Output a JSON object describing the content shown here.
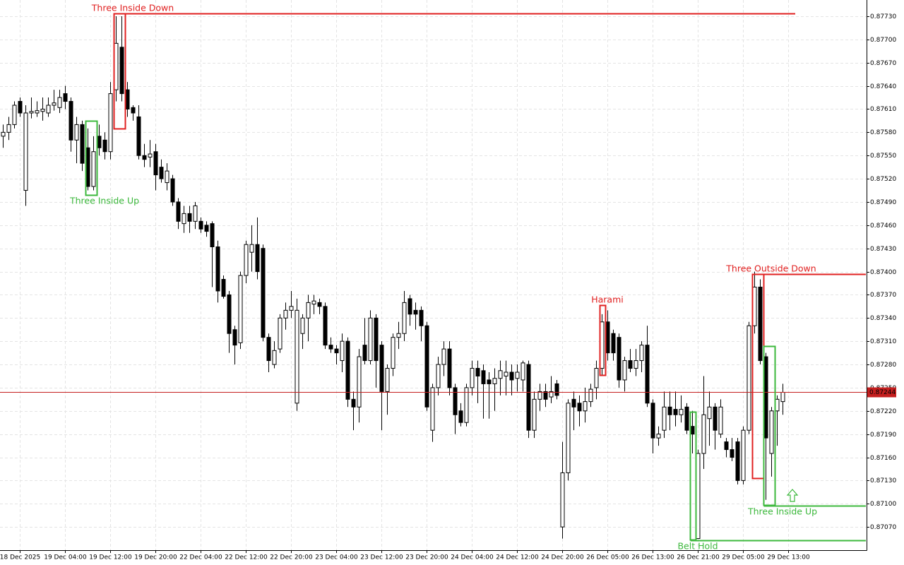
{
  "chart_data": {
    "type": "candlestick",
    "categories": [
      null,
      null,
      null,
      "18 Dec 2025",
      null,
      null,
      null,
      null,
      null,
      null,
      null,
      "19 Dec 04:00",
      null,
      null,
      null,
      null,
      null,
      null,
      null,
      "19 Dec 12:00",
      null,
      null,
      null,
      null,
      null,
      null,
      null,
      "19 Dec 20:00",
      null,
      null,
      null,
      null,
      null,
      null,
      null,
      "22 Dec 04:00",
      null,
      null,
      null,
      null,
      null,
      null,
      null,
      "22 Dec 12:00",
      null,
      null,
      null,
      null,
      null,
      null,
      null,
      "22 Dec 20:00",
      null,
      null,
      null,
      null,
      null,
      null,
      null,
      "23 Dec 04:00",
      null,
      null,
      null,
      null,
      null,
      null,
      null,
      "23 Dec 12:00",
      null,
      null,
      null,
      null,
      null,
      null,
      null,
      "23 Dec 20:00",
      null,
      null,
      null,
      null,
      null,
      null,
      null,
      "24 Dec 04:00",
      null,
      null,
      null,
      null,
      null,
      null,
      null,
      "24 Dec 12:00",
      null,
      null,
      null,
      null,
      null,
      null,
      null,
      "24 Dec 20:00",
      null,
      null,
      null,
      null,
      null,
      null,
      null,
      "26 Dec 05:00",
      null,
      null,
      null,
      null,
      null,
      null,
      null,
      "26 Dec 13:00",
      null,
      null,
      null,
      null,
      null,
      null,
      null,
      "26 Dec 21:00",
      null,
      null,
      null,
      null,
      null,
      null,
      null,
      "29 Dec 05:00",
      null,
      null,
      null,
      null,
      null,
      null,
      null,
      "29 Dec 13:00"
    ],
    "open": [
      0.87575,
      0.8758,
      0.8759,
      0.8762,
      0.87505,
      0.87605,
      0.87605,
      0.87607,
      0.87605,
      0.87615,
      0.87612,
      0.8763,
      0.8762,
      0.8757,
      0.8759,
      0.8756,
      0.8751,
      0.87575,
      0.8757,
      0.87555,
      0.87635,
      0.8769,
      0.87635,
      0.87612,
      0.876,
      0.8755,
      0.87548,
      0.87555,
      0.87535,
      0.87515,
      0.8752,
      0.8749,
      0.87462,
      0.87475,
      0.87465,
      0.87465,
      0.8746,
      0.87462,
      0.87432,
      0.8739,
      0.8737,
      0.87325,
      0.87308,
      0.87395,
      0.87425,
      0.87435,
      0.8743,
      0.87315,
      0.8728,
      0.873,
      0.8734,
      0.8735,
      0.8723,
      0.8732,
      0.8734,
      0.87358,
      0.8736,
      0.87355,
      0.87305,
      0.873,
      0.87285,
      0.8731,
      0.87235,
      0.87225,
      0.87305,
      0.87285,
      0.8734,
      0.87305,
      0.87245,
      0.87275,
      0.87315,
      0.8732,
      0.87365,
      0.8735,
      0.8735,
      0.8733,
      0.87195,
      0.8725,
      0.8728,
      0.873,
      0.8725,
      0.8722,
      0.87205,
      0.8725,
      0.87275,
      0.87272,
      0.8726,
      0.87255,
      0.87262,
      0.87265,
      0.8727,
      0.87262,
      0.8726,
      0.8728,
      0.87195,
      0.87235,
      0.87245,
      0.87238,
      0.87255,
      0.8707,
      0.8714,
      0.87235,
      0.8723,
      0.8722,
      0.87232,
      0.8725,
      0.87275,
      0.87335,
      0.8732,
      0.87315,
      0.8726,
      0.87285,
      0.87275,
      0.87285,
      0.87305,
      0.8723,
      0.87185,
      0.87195,
      0.87225,
      0.87222,
      0.87215,
      0.87225,
      0.872,
      0.87055,
      0.87165,
      0.8721,
      0.87225,
      0.8719,
      0.8718,
      0.8717,
      0.8718,
      0.8713,
      0.87195,
      0.8733,
      0.8738,
      0.8729,
      0.87165,
      0.8722,
      0.87232,
      null
    ],
    "high": [
      0.8759,
      0.876,
      0.8762,
      0.87625,
      0.87615,
      0.87625,
      0.8762,
      0.87625,
      0.87625,
      0.87635,
      0.87635,
      0.8764,
      0.87625,
      0.876,
      0.87595,
      0.87585,
      0.87575,
      0.8759,
      0.8758,
      0.87645,
      0.8773,
      0.8773,
      0.87645,
      0.87615,
      0.87615,
      0.87565,
      0.8757,
      0.87565,
      0.87545,
      0.8754,
      0.87525,
      0.87495,
      0.87485,
      0.87485,
      0.8749,
      0.8747,
      0.87465,
      0.87465,
      0.8744,
      0.87395,
      0.87375,
      0.8733,
      0.874,
      0.8744,
      0.8746,
      0.8747,
      0.87435,
      0.8732,
      0.8731,
      0.87345,
      0.8736,
      0.87375,
      0.87365,
      0.87345,
      0.8737,
      0.8737,
      0.87365,
      0.8736,
      0.87315,
      0.87305,
      0.8732,
      0.87315,
      0.87245,
      0.873,
      0.8734,
      0.8735,
      0.87345,
      0.8731,
      0.8728,
      0.8732,
      0.87335,
      0.87375,
      0.8737,
      0.8736,
      0.87355,
      0.87335,
      0.87255,
      0.8729,
      0.8731,
      0.8731,
      0.87255,
      0.8723,
      0.87255,
      0.87285,
      0.87285,
      0.8728,
      0.8727,
      0.87275,
      0.87285,
      0.87285,
      0.8728,
      0.8728,
      0.87285,
      0.87285,
      0.87245,
      0.87255,
      0.87255,
      0.87265,
      0.8726,
      0.8718,
      0.87235,
      0.87245,
      0.8724,
      0.8725,
      0.87255,
      0.87285,
      0.87345,
      0.8735,
      0.87325,
      0.8732,
      0.8729,
      0.873,
      0.873,
      0.8731,
      0.8733,
      0.87235,
      0.872,
      0.87245,
      0.87245,
      0.87245,
      0.8724,
      0.8723,
      0.8722,
      0.8717,
      0.87265,
      0.87245,
      0.8723,
      0.87235,
      0.87185,
      0.87185,
      0.87185,
      0.872,
      0.87335,
      0.874,
      0.8739,
      0.87295,
      0.87225,
      0.8724,
      0.87255,
      null
    ],
    "low": [
      0.8756,
      0.8757,
      0.87585,
      0.876,
      0.87485,
      0.87598,
      0.876,
      0.87595,
      0.876,
      0.87608,
      0.87605,
      0.8761,
      0.87555,
      0.8754,
      0.8753,
      0.87505,
      0.87505,
      0.8755,
      0.87545,
      0.87545,
      0.8762,
      0.8762,
      0.876,
      0.87595,
      0.87545,
      0.87535,
      0.87535,
      0.87505,
      0.87515,
      0.87505,
      0.87485,
      0.87455,
      0.8745,
      0.8745,
      0.87455,
      0.8745,
      0.87445,
      0.8738,
      0.8736,
      0.87365,
      0.87295,
      0.8728,
      0.873,
      0.87385,
      0.874,
      0.8739,
      0.8731,
      0.8727,
      0.87275,
      0.87295,
      0.87325,
      0.8734,
      0.8722,
      0.873,
      0.8731,
      0.87345,
      0.87345,
      0.873,
      0.87295,
      0.8728,
      0.8727,
      0.87225,
      0.87195,
      0.87205,
      0.8728,
      0.8728,
      0.8725,
      0.87195,
      0.87215,
      0.87265,
      0.873,
      0.8731,
      0.8733,
      0.87325,
      0.8731,
      0.8722,
      0.8718,
      0.8724,
      0.87265,
      0.8724,
      0.8719,
      0.872,
      0.872,
      0.8724,
      0.8723,
      0.8721,
      0.8721,
      0.8722,
      0.8724,
      0.8724,
      0.8724,
      0.87245,
      0.87245,
      0.87185,
      0.87185,
      0.8722,
      0.87225,
      0.8723,
      0.87235,
      0.87055,
      0.8713,
      0.87195,
      0.872,
      0.87205,
      0.87225,
      0.87235,
      0.87265,
      0.87285,
      0.87285,
      0.8725,
      0.87245,
      0.8727,
      0.87265,
      0.8727,
      0.87225,
      0.87165,
      0.87175,
      0.87185,
      0.87195,
      0.872,
      0.87205,
      0.8719,
      0.87165,
      0.87055,
      0.87145,
      0.87175,
      0.8717,
      0.87185,
      0.8716,
      0.87155,
      0.87125,
      0.87125,
      0.8719,
      0.8732,
      0.8728,
      0.87105,
      0.87135,
      0.87175,
      0.87215,
      null
    ],
    "close": [
      0.8758,
      0.8759,
      0.87615,
      0.87605,
      0.87605,
      0.87607,
      0.87608,
      0.8761,
      0.87615,
      0.87618,
      0.87625,
      0.8762,
      0.8757,
      0.8759,
      0.8754,
      0.8751,
      0.87555,
      0.8756,
      0.87555,
      0.8763,
      0.87695,
      0.8763,
      0.8761,
      0.87605,
      0.8755,
      0.87545,
      0.87552,
      0.87525,
      0.8752,
      0.8753,
      0.8749,
      0.87465,
      0.87475,
      0.87465,
      0.87485,
      0.87455,
      0.87452,
      0.87432,
      0.87375,
      0.87368,
      0.8732,
      0.87305,
      0.87395,
      0.87435,
      0.87435,
      0.874,
      0.87315,
      0.87285,
      0.87298,
      0.8734,
      0.8735,
      0.87355,
      0.8735,
      0.8734,
      0.8736,
      0.87362,
      0.87355,
      0.87305,
      0.873,
      0.87295,
      0.8731,
      0.87235,
      0.87225,
      0.8729,
      0.87285,
      0.8734,
      0.87285,
      0.87245,
      0.87275,
      0.87315,
      0.8732,
      0.8736,
      0.87345,
      0.87345,
      0.8733,
      0.87225,
      0.8725,
      0.8728,
      0.873,
      0.8725,
      0.87215,
      0.87205,
      0.8725,
      0.87275,
      0.87265,
      0.87255,
      0.87255,
      0.87262,
      0.87272,
      0.8727,
      0.8726,
      0.8727,
      0.87282,
      0.87195,
      0.87235,
      0.87245,
      0.87235,
      0.87245,
      0.8724,
      0.8714,
      0.8723,
      0.87225,
      0.8722,
      0.87232,
      0.87248,
      0.87275,
      0.87335,
      0.87295,
      0.87295,
      0.8726,
      0.87285,
      0.87275,
      0.87285,
      0.87305,
      0.8723,
      0.87185,
      0.8719,
      0.87225,
      0.87215,
      0.87215,
      0.87222,
      0.87195,
      0.8719,
      0.87165,
      0.87215,
      0.87225,
      0.87195,
      0.87225,
      0.8717,
      0.8716,
      0.8713,
      0.87195,
      0.8733,
      0.8738,
      0.87285,
      0.87185,
      0.8722,
      0.87235,
      0.87244,
      null
    ],
    "up_color": "#ffffff",
    "down_color": "#000000",
    "wick_color": "#000000",
    "ylim": [
      0.8704,
      0.87751
    ],
    "yticks": [
      {
        "value": 0.8707,
        "label": "0.87070"
      },
      {
        "value": 0.871,
        "label": "0.87100"
      },
      {
        "value": 0.8713,
        "label": "0.87130"
      },
      {
        "value": 0.8716,
        "label": "0.87160"
      },
      {
        "value": 0.8719,
        "label": "0.87190"
      },
      {
        "value": 0.8722,
        "label": "0.87220"
      },
      {
        "value": 0.8725,
        "label": "0.87250"
      },
      {
        "value": 0.8728,
        "label": "0.87280"
      },
      {
        "value": 0.8731,
        "label": "0.87310"
      },
      {
        "value": 0.8734,
        "label": "0.87340"
      },
      {
        "value": 0.8737,
        "label": "0.87370"
      },
      {
        "value": 0.874,
        "label": "0.87400"
      },
      {
        "value": 0.8743,
        "label": "0.87430"
      },
      {
        "value": 0.8746,
        "label": "0.87460"
      },
      {
        "value": 0.8749,
        "label": "0.87490"
      },
      {
        "value": 0.8752,
        "label": "0.87520"
      },
      {
        "value": 0.8755,
        "label": "0.87550"
      },
      {
        "value": 0.8758,
        "label": "0.87580"
      },
      {
        "value": 0.8761,
        "label": "0.87610"
      },
      {
        "value": 0.8764,
        "label": "0.87640"
      },
      {
        "value": 0.8767,
        "label": "0.87670"
      },
      {
        "value": 0.877,
        "label": "0.87700"
      },
      {
        "value": 0.8773,
        "label": "0.87730"
      }
    ],
    "grid": true,
    "last_price": 0.87244,
    "last_price_color": "#c41e1e",
    "annotations": [
      {
        "text": "Three Inside Down",
        "color": "#e02020"
      },
      {
        "text": "Three Inside Up",
        "color": "#3cb83c"
      },
      {
        "text": "Harami",
        "color": "#e02020"
      },
      {
        "text": "Three Outside Down",
        "color": "#e02020"
      },
      {
        "text": "Three Inside Up",
        "color": "#3cb83c"
      },
      {
        "text": "Belt Hold",
        "color": "#3cb83c"
      }
    ]
  }
}
